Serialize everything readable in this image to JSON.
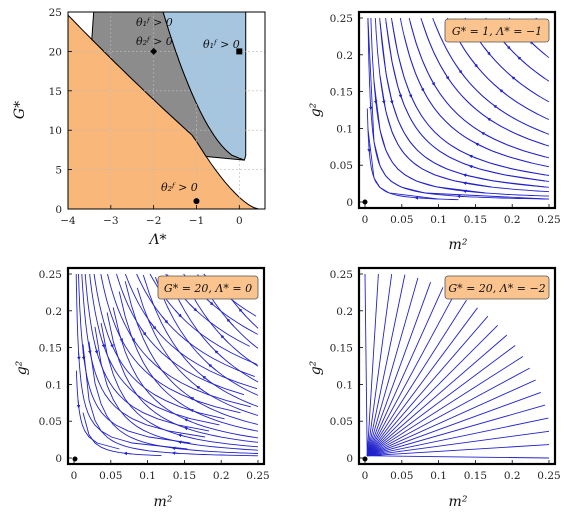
{
  "chart_data": [
    {
      "type": "area",
      "title": "",
      "xlabel": "Λ*",
      "ylabel": "G*",
      "xlim": [
        -4,
        0.6
      ],
      "ylim": [
        0,
        25
      ],
      "xticks": [
        -4,
        -3,
        -2,
        -1,
        0
      ],
      "yticks": [
        0,
        5,
        10,
        15,
        20,
        25
      ],
      "xtick_labels": [
        "−4",
        "−3",
        "−2",
        "−1",
        "0"
      ],
      "ytick_labels": [
        "0",
        "5",
        "10",
        "15",
        "20",
        "25"
      ],
      "grid": true,
      "regions": [
        {
          "label": "θ₂ᶠ > 0",
          "color": "#f9b77a"
        },
        {
          "label": "θ₁ᶠ > 0, θ₂ᶠ > 0",
          "color": "#8c8c8c"
        },
        {
          "label": "θ₁ᶠ > 0",
          "color": "#a6c6e0"
        }
      ],
      "region_labels": [
        {
          "text": "θ₁ᶠ > 0",
          "x": -1.55,
          "y": 21.5
        },
        {
          "text": "θ₂ᶠ > 0",
          "x": -1.55,
          "y": 19.3
        },
        {
          "text": "θ₁ᶠ > 0",
          "x": -0.55,
          "y": 21.5
        },
        {
          "text": "θ₂ᶠ > 0",
          "x": -1.2,
          "y": 2.3
        }
      ],
      "points": [
        {
          "x": -2,
          "y": 20,
          "marker": "diamond"
        },
        {
          "x": 0,
          "y": 20,
          "marker": "square"
        },
        {
          "x": -1,
          "y": 1,
          "marker": "circle"
        }
      ]
    },
    {
      "type": "streamplot",
      "legend": "G* = 1, Λ* = −1",
      "xlabel": "m²",
      "ylabel": "g²",
      "xlim": [
        0,
        0.25
      ],
      "ylim": [
        0,
        0.25
      ],
      "xticks": [
        0,
        0.05,
        0.1,
        0.15,
        0.2,
        0.25
      ],
      "yticks": [
        0,
        0.05,
        0.1,
        0.15,
        0.2,
        0.25
      ],
      "xtick_labels": [
        "0",
        "0.05",
        "0.1",
        "0.15",
        "0.2",
        "0.25"
      ],
      "ytick_labels": [
        "0",
        "0.05",
        "0.1",
        "0.15",
        "0.2",
        "0.25"
      ],
      "fixed_point": [
        0,
        0
      ],
      "flow": "hyperbolic"
    },
    {
      "type": "streamplot",
      "legend": "G* = 20, Λ* = 0",
      "xlabel": "m²",
      "ylabel": "g²",
      "xlim": [
        0,
        0.25
      ],
      "ylim": [
        0,
        0.25
      ],
      "xticks": [
        0,
        0.05,
        0.1,
        0.15,
        0.2,
        0.25
      ],
      "yticks": [
        0,
        0.05,
        0.1,
        0.15,
        0.2,
        0.25
      ],
      "xtick_labels": [
        "0",
        "0.05",
        "0.1",
        "0.15",
        "0.2",
        "0.25"
      ],
      "ytick_labels": [
        "0",
        "0.05",
        "0.1",
        "0.15",
        "0.2",
        "0.25"
      ],
      "fixed_point": [
        0,
        0
      ],
      "flow": "hyperbolic-left"
    },
    {
      "type": "streamplot",
      "legend": "G* = 20, Λ* = −2",
      "xlabel": "m²",
      "ylabel": "g²",
      "xlim": [
        0,
        0.25
      ],
      "ylim": [
        0,
        0.25
      ],
      "xticks": [
        0,
        0.05,
        0.1,
        0.15,
        0.2,
        0.25
      ],
      "yticks": [
        0,
        0.05,
        0.1,
        0.15,
        0.2,
        0.25
      ],
      "xtick_labels": [
        "0",
        "0.05",
        "0.1",
        "0.15",
        "0.2",
        "0.25"
      ],
      "ytick_labels": [
        "0",
        "0.05",
        "0.1",
        "0.15",
        "0.2",
        "0.25"
      ],
      "fixed_point": [
        0,
        0
      ],
      "flow": "radial"
    }
  ],
  "colors": {
    "orange": "#f9b77a",
    "gray": "#8c8c8c",
    "blue": "#a6c6e0",
    "stream": "#2222cc",
    "legend_bg": "#fbc48e"
  }
}
